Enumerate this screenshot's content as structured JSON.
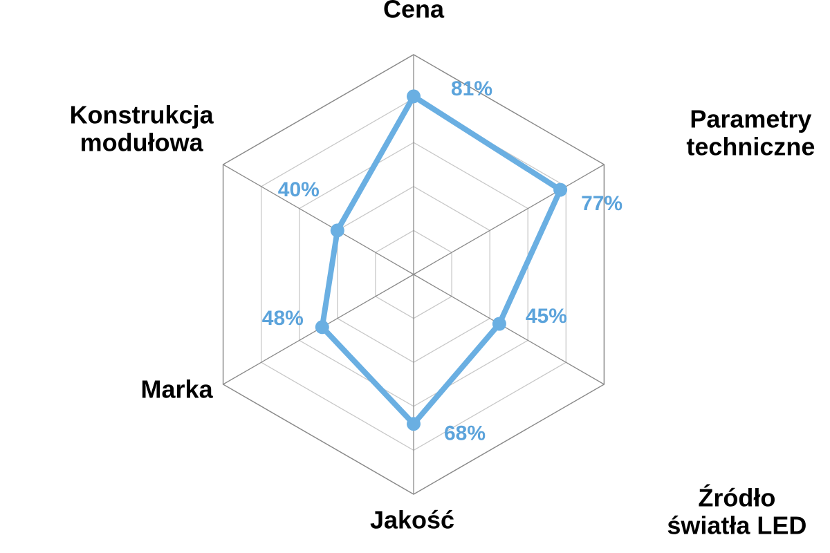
{
  "chart_data": {
    "type": "radar",
    "categories": [
      "Cena",
      "Parametry techniczne",
      "Źródło światła LED",
      "Jakość",
      "Marka",
      "Konstrukcja modułowa"
    ],
    "category_lines": [
      [
        "Cena"
      ],
      [
        "Parametry",
        "techniczne"
      ],
      [
        "Źródło",
        "światła LED"
      ],
      [
        "Jakość"
      ],
      [
        "Marka"
      ],
      [
        "Konstrukcja",
        "modułowa"
      ]
    ],
    "series": [
      {
        "values": [
          81,
          77,
          45,
          68,
          48,
          40
        ]
      }
    ],
    "data_labels": [
      "81%",
      "77%",
      "45%",
      "68%",
      "48%",
      "40%"
    ],
    "rlim": [
      0,
      100
    ],
    "rings": 5,
    "legend": "none",
    "colors": {
      "series": "#6aafe2",
      "label": "#5ba3db",
      "grid": "#c8c8c8",
      "axis": "#8a8a8a",
      "text": "#000000"
    }
  }
}
